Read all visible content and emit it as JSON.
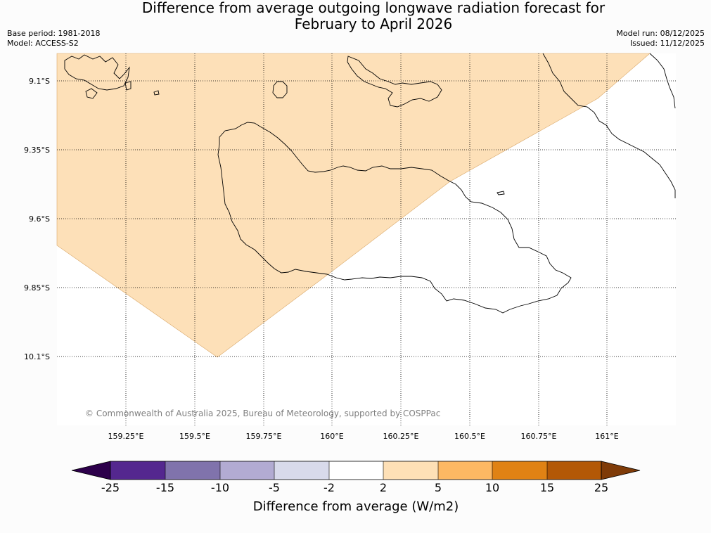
{
  "header": {
    "title_line1": "Difference from average outgoing longwave radiation forecast for",
    "title_line2": "February to April 2026",
    "base_period": "Base period: 1981-2018",
    "model": "Model: ACCESS-S2",
    "model_run": "Model run: 08/12/2025",
    "issued": "Issued: 11/12/2025"
  },
  "map": {
    "lat_ticks": [
      "9.1°S",
      "9.35°S",
      "9.6°S",
      "9.85°S",
      "10.1°S"
    ],
    "lon_ticks": [
      "159.25°E",
      "159.5°E",
      "159.75°E",
      "160°E",
      "160.25°E",
      "160.5°E",
      "160.75°E",
      "161°E"
    ],
    "fill_category": "2 to 5",
    "fill_color": "#fde0b8",
    "credit": "© Commonwealth of Australia 2025, Bureau of Meteorology, supported by COSPPac"
  },
  "colorbar": {
    "title": "Difference from average (W/m2)",
    "labels": [
      "-25",
      "-15",
      "-10",
      "-5",
      "-2",
      "2",
      "5",
      "10",
      "15",
      "25"
    ],
    "colors": [
      "#54278f",
      "#8073ac",
      "#b2abd2",
      "#d8daeb",
      "#ffffff",
      "#fee0b6",
      "#fdb863",
      "#e08214",
      "#b35806"
    ],
    "extend_low_color": "#2d004b",
    "extend_high_color": "#7f3b08"
  }
}
